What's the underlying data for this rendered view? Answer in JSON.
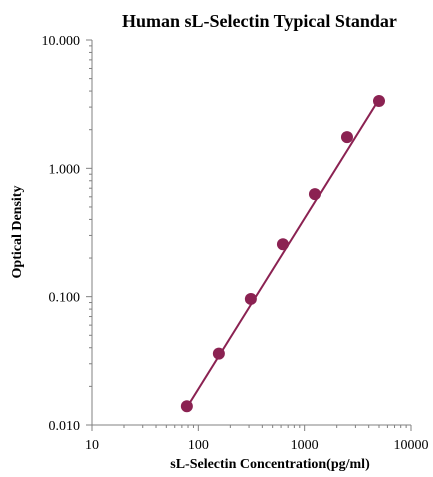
{
  "chart_data": {
    "type": "scatter",
    "title": "Human  sL-Selectin Typical Standar",
    "xlabel": "sL-Selectin Concentration(pg/ml)",
    "ylabel": "Optical Density",
    "x_scale": "log",
    "y_scale": "log",
    "xlim": [
      10,
      10000
    ],
    "ylim": [
      0.01,
      10
    ],
    "x_ticks": [
      "10",
      "100",
      "1000",
      "10000"
    ],
    "y_ticks": [
      "0.010",
      "0.100",
      "1.000",
      "10.000"
    ],
    "grid": false,
    "legend": "none",
    "colors": {
      "marker": "#8b2252",
      "line": "#8b2252",
      "axis": "#808080"
    },
    "series": [
      {
        "x": [
          78,
          156,
          312,
          625,
          1250,
          2500,
          5000
        ],
        "y": [
          0.014,
          0.036,
          0.096,
          0.256,
          0.63,
          1.75,
          3.35
        ]
      }
    ],
    "fit_line": {
      "x": [
        78,
        5000
      ],
      "y": [
        0.0137,
        3.45
      ]
    }
  }
}
